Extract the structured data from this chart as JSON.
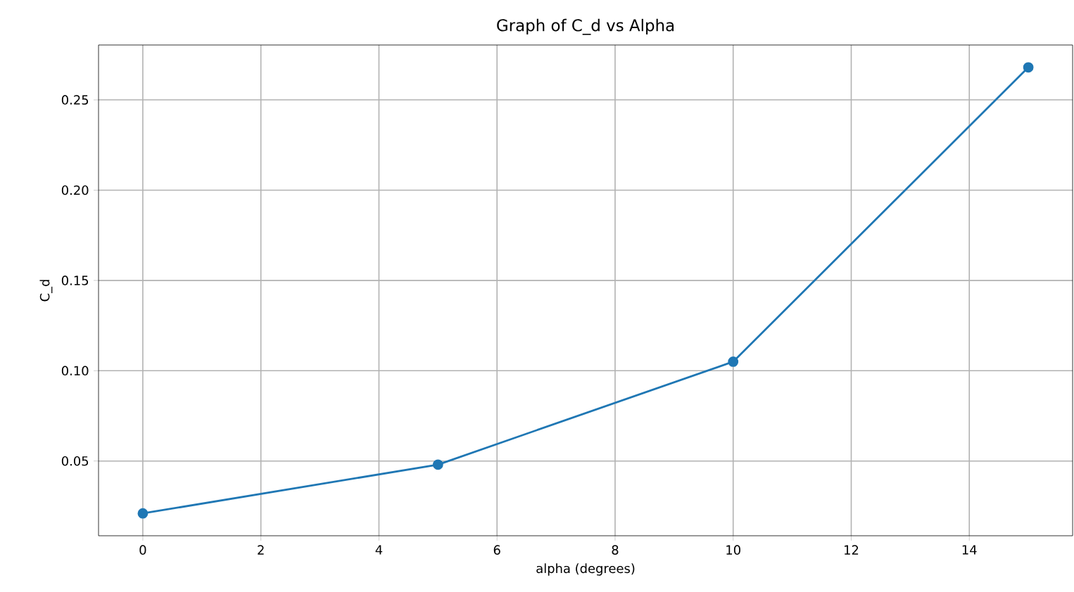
{
  "chart_data": {
    "type": "line",
    "title": "Graph of C_d vs Alpha",
    "xlabel": "alpha (degrees)",
    "ylabel": "C_d",
    "x": [
      0,
      5,
      10,
      15
    ],
    "series": [
      {
        "color": "#1f77b4",
        "values": [
          0.021,
          0.048,
          0.105,
          0.268
        ]
      }
    ],
    "xlim": [
      -0.75,
      15.75
    ],
    "ylim": [
      0.0086,
      0.2804
    ],
    "xticks": [
      0,
      2,
      4,
      6,
      8,
      10,
      12,
      14
    ],
    "yticks": [
      {
        "value": 0.05,
        "label": "0.05"
      },
      {
        "value": 0.1,
        "label": "0.10"
      },
      {
        "value": 0.15,
        "label": "0.15"
      },
      {
        "value": 0.2,
        "label": "0.20"
      },
      {
        "value": 0.25,
        "label": "0.25"
      }
    ],
    "grid": true,
    "marker": "circle",
    "line_style": "solid"
  }
}
